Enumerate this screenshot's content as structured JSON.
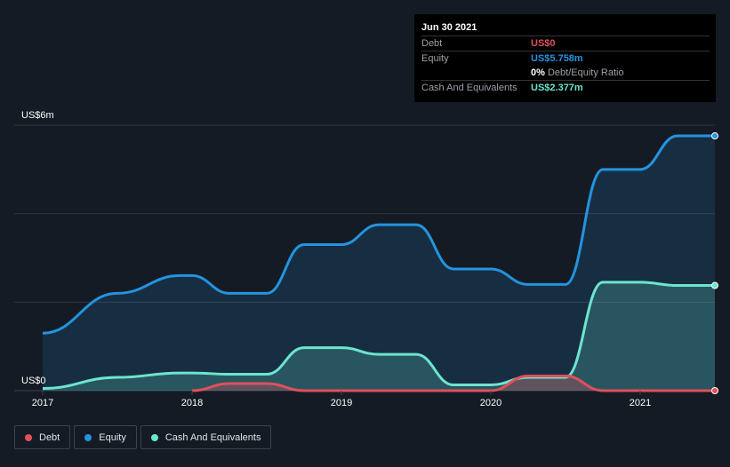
{
  "colors": {
    "debt": "#e0505b",
    "equity": "#2394df",
    "cash": "#6ce5cf",
    "grid": "#3a4150",
    "axis_text": "#ffffff"
  },
  "tooltip": {
    "date": "Jun 30 2021",
    "debt_label": "Debt",
    "debt_value": "US$0",
    "equity_label": "Equity",
    "equity_value": "US$5.758m",
    "ratio_value": "0%",
    "ratio_label": "Debt/Equity Ratio",
    "cash_label": "Cash And Equivalents",
    "cash_value": "US$2.377m"
  },
  "legend": [
    {
      "label": "Debt",
      "color": "#e0505b"
    },
    {
      "label": "Equity",
      "color": "#2394df"
    },
    {
      "label": "Cash And Equivalents",
      "color": "#6ce5cf"
    }
  ],
  "chart_data": {
    "type": "area",
    "y_unit_labels": {
      "top": "US$6m",
      "bottom": "US$0"
    },
    "ylim": [
      0,
      6
    ],
    "xlim": [
      2017.0,
      2021.5
    ],
    "x_ticks": [
      2017,
      2018,
      2019,
      2020,
      2021
    ],
    "x_tick_labels": [
      "2017",
      "2018",
      "2019",
      "2020",
      "2021"
    ],
    "series": [
      {
        "name": "Equity",
        "color": "#2394df",
        "x": [
          2017.0,
          2017.5,
          2017.92,
          2018.0,
          2018.25,
          2018.5,
          2018.75,
          2019.0,
          2019.25,
          2019.5,
          2019.75,
          2020.0,
          2020.25,
          2020.5,
          2020.75,
          2021.0,
          2021.25,
          2021.5
        ],
        "values": [
          1.3,
          2.2,
          2.6,
          2.6,
          2.2,
          2.2,
          3.3,
          3.3,
          3.75,
          3.75,
          2.75,
          2.75,
          2.4,
          2.4,
          5.0,
          5.0,
          5.758,
          5.758
        ]
      },
      {
        "name": "Cash And Equivalents",
        "color": "#6ce5cf",
        "x": [
          2017.0,
          2017.5,
          2017.92,
          2018.0,
          2018.25,
          2018.5,
          2018.75,
          2019.0,
          2019.25,
          2019.5,
          2019.75,
          2020.0,
          2020.25,
          2020.5,
          2020.75,
          2021.0,
          2021.25,
          2021.5
        ],
        "values": [
          0.05,
          0.3,
          0.4,
          0.4,
          0.37,
          0.37,
          0.97,
          0.97,
          0.82,
          0.82,
          0.13,
          0.13,
          0.3,
          0.3,
          2.45,
          2.45,
          2.377,
          2.377
        ]
      },
      {
        "name": "Debt",
        "color": "#e0505b",
        "x": [
          2018.0,
          2018.25,
          2018.5,
          2018.75,
          2019.0,
          2019.5,
          2020.0,
          2020.25,
          2020.5,
          2020.75,
          2021.0,
          2021.5
        ],
        "values": [
          0.0,
          0.16,
          0.16,
          0.0,
          0.0,
          0.0,
          0.0,
          0.33,
          0.33,
          0.0,
          0.0,
          0.0
        ]
      }
    ]
  }
}
